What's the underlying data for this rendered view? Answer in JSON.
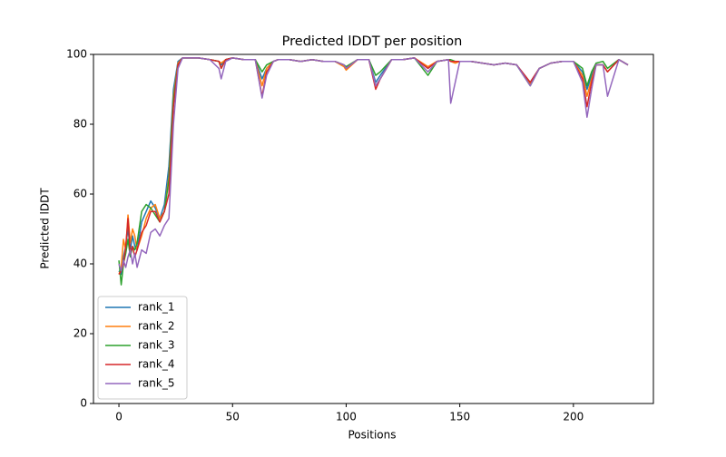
{
  "chart_data": {
    "type": "line",
    "title": "Predicted lDDT per position",
    "xlabel": "Positions",
    "ylabel": "Predicted lDDT",
    "x": [
      0,
      1,
      2,
      3,
      4,
      5,
      6,
      7,
      8,
      10,
      12,
      14,
      16,
      18,
      20,
      22,
      24,
      26,
      28,
      30,
      35,
      40,
      44,
      45,
      47,
      50,
      55,
      60,
      63,
      65,
      68,
      70,
      75,
      80,
      85,
      90,
      95,
      99,
      100,
      105,
      110,
      113,
      115,
      120,
      125,
      130,
      136,
      140,
      145,
      146,
      148,
      150,
      155,
      160,
      165,
      170,
      175,
      181,
      185,
      190,
      195,
      200,
      204,
      206,
      208,
      210,
      213,
      215,
      220,
      224
    ],
    "series": [
      {
        "name": "rank_1",
        "color": "#1f77b4",
        "values": [
          38,
          37,
          42,
          45,
          50,
          44,
          48,
          45,
          44,
          52,
          55,
          58,
          56,
          53,
          57,
          68,
          90,
          98,
          99,
          99,
          99,
          98.5,
          98,
          97,
          98.5,
          99,
          98.5,
          98.5,
          93,
          96,
          98,
          98.5,
          98.5,
          98,
          98.5,
          98,
          98,
          97,
          96,
          98.5,
          98.5,
          92,
          94,
          98.5,
          98.5,
          99,
          96,
          98,
          98.5,
          98,
          98,
          98,
          98,
          97.5,
          97,
          97.5,
          97,
          92,
          96,
          97.5,
          98,
          98,
          95,
          90,
          94,
          97,
          97,
          95,
          98.5,
          97
        ]
      },
      {
        "name": "rank_2",
        "color": "#ff7f0e",
        "values": [
          37,
          39,
          47,
          44,
          54,
          46,
          50,
          48,
          44,
          48,
          53,
          56,
          57,
          53,
          55,
          65,
          88,
          97.5,
          99,
          99,
          99,
          98.5,
          98,
          97.5,
          98.5,
          99,
          98.5,
          98.5,
          91,
          96,
          98,
          98.5,
          98.5,
          98,
          98.5,
          98,
          98,
          96.5,
          95.5,
          98.5,
          98.5,
          91,
          93,
          98.5,
          98.5,
          99,
          96.5,
          98,
          98.5,
          98,
          97.5,
          98,
          98,
          97.5,
          97,
          97.5,
          97,
          91.5,
          96,
          97.5,
          98,
          98,
          94,
          88,
          93,
          97,
          97,
          95,
          98.5,
          97
        ]
      },
      {
        "name": "rank_3",
        "color": "#2ca02c",
        "values": [
          41,
          34,
          40,
          43,
          47,
          42,
          45,
          44,
          46,
          55,
          57,
          56,
          54,
          52,
          55,
          64,
          87,
          97,
          99,
          99,
          99,
          98.5,
          98,
          96,
          98.5,
          99,
          98.5,
          98.5,
          95,
          97,
          98,
          98.5,
          98.5,
          98,
          98.5,
          98,
          98,
          97,
          96.5,
          98.5,
          98.5,
          94,
          95,
          98.5,
          98.5,
          99,
          94,
          98,
          98.5,
          98.5,
          98,
          98,
          98,
          97.5,
          97,
          97.5,
          97,
          91,
          96,
          97.5,
          98,
          98,
          96,
          91,
          95,
          97.5,
          98,
          96,
          98.5,
          97
        ]
      },
      {
        "name": "rank_4",
        "color": "#d62728",
        "values": [
          37,
          38,
          40,
          45,
          53,
          43,
          45,
          42,
          44,
          49,
          51,
          55,
          55,
          52,
          55,
          60,
          85,
          97,
          99,
          99,
          99,
          98.5,
          98,
          96,
          98.5,
          99,
          98.5,
          98.5,
          88,
          95,
          98,
          98.5,
          98.5,
          98,
          98.5,
          98,
          98,
          97,
          96,
          98.5,
          98.5,
          90,
          93,
          98.5,
          98.5,
          99,
          96,
          98,
          98.5,
          98,
          98,
          98,
          98,
          97.5,
          97,
          97.5,
          97,
          92,
          96,
          97.5,
          98,
          98,
          93,
          85,
          92,
          97,
          97,
          95,
          98.5,
          97
        ]
      },
      {
        "name": "rank_5",
        "color": "#9467bd",
        "values": [
          40,
          38,
          41,
          39,
          42,
          44,
          40,
          43,
          39,
          44,
          43,
          49,
          50,
          48,
          51,
          53,
          80,
          96,
          99,
          99,
          99,
          98.5,
          96,
          93,
          98,
          99,
          98.5,
          98.5,
          87.5,
          94,
          98,
          98.5,
          98.5,
          98,
          98.5,
          98,
          98,
          97,
          96,
          98.5,
          98.5,
          91,
          93,
          98.5,
          98.5,
          99,
          95,
          98,
          98.5,
          86,
          92,
          98,
          98,
          97.5,
          97,
          97.5,
          97,
          91,
          96,
          97.5,
          98,
          98,
          92,
          82,
          90,
          97,
          97,
          88,
          98.5,
          97
        ]
      }
    ],
    "xlim": [
      -11.2,
      235.2
    ],
    "ylim": [
      0,
      100
    ],
    "xticks": [
      0,
      50,
      100,
      150,
      200
    ],
    "yticks": [
      0,
      20,
      40,
      60,
      80,
      100
    ],
    "grid": false,
    "legend": "lower left"
  }
}
